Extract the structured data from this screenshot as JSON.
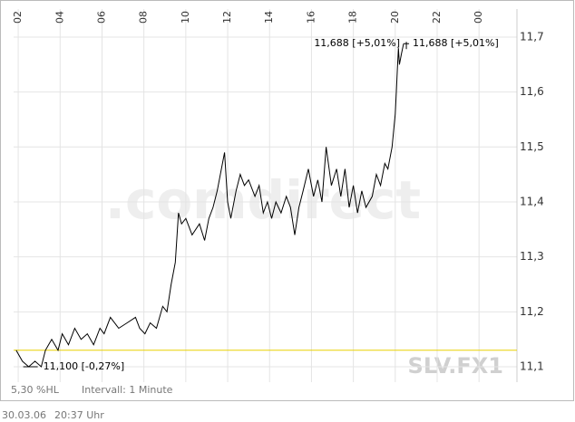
{
  "chart_data": {
    "type": "line",
    "watermark": ".comdirect",
    "symbol": "SLV.FX1",
    "info": [
      "5,30 %HL",
      "Intervall: 1 Minute"
    ],
    "footer": [
      "30.03.06",
      "20:37 Uhr"
    ],
    "annotations": [
      "11,688 [+5,01%]",
      "11,688 [+5,01%]",
      "11,100 [-0,27%]"
    ],
    "reference": {
      "value": 11.13,
      "color": "#e8d000"
    },
    "grid": true,
    "xlim": [
      1.78,
      25.81
    ],
    "xticks": [
      {
        "value": 2,
        "label": "02"
      },
      {
        "value": 4,
        "label": "04"
      },
      {
        "value": 6,
        "label": "06"
      },
      {
        "value": 8,
        "label": "08"
      },
      10,
      12,
      14,
      16,
      18,
      20,
      22,
      {
        "value": 24,
        "label": "00"
      }
    ],
    "ylim": [
      11.072,
      11.751
    ],
    "yticks": [
      {
        "value": 11.1,
        "label": "11,1"
      },
      {
        "value": 11.2,
        "label": "11,2"
      },
      {
        "value": 11.3,
        "label": "11,3"
      },
      {
        "value": 11.4,
        "label": "11,4"
      },
      {
        "value": 11.5,
        "label": "11,5"
      },
      {
        "value": 11.6,
        "label": "11,6"
      },
      {
        "value": 11.7,
        "label": "11,7"
      }
    ],
    "x": [
      1.9,
      2.2,
      2.5,
      2.8,
      3.1,
      3.3,
      3.6,
      3.9,
      4.1,
      4.4,
      4.7,
      5.0,
      5.3,
      5.6,
      5.9,
      6.1,
      6.4,
      6.8,
      7.2,
      7.6,
      7.8,
      8.05,
      8.3,
      8.6,
      8.9,
      9.1,
      9.3,
      9.5,
      9.65,
      9.8,
      10.0,
      10.3,
      10.65,
      10.9,
      11.1,
      11.3,
      11.5,
      11.7,
      11.85,
      12.0,
      12.15,
      12.4,
      12.6,
      12.8,
      13.0,
      13.3,
      13.5,
      13.7,
      13.9,
      14.1,
      14.3,
      14.55,
      14.8,
      15.0,
      15.2,
      15.4,
      15.6,
      15.85,
      16.1,
      16.3,
      16.5,
      16.7,
      16.95,
      17.2,
      17.4,
      17.6,
      17.8,
      18.0,
      18.2,
      18.4,
      18.6,
      18.9,
      19.1,
      19.3,
      19.5,
      19.65,
      19.85,
      20.0,
      20.05,
      20.1,
      20.15,
      20.2,
      20.3,
      20.4
    ],
    "series": [
      {
        "color": "#000000",
        "values": [
          11.13,
          11.11,
          11.1,
          11.11,
          11.1,
          11.13,
          11.15,
          11.13,
          11.16,
          11.14,
          11.17,
          11.15,
          11.16,
          11.14,
          11.17,
          11.16,
          11.19,
          11.17,
          11.18,
          11.19,
          11.17,
          11.16,
          11.18,
          11.17,
          11.21,
          11.2,
          11.25,
          11.29,
          11.38,
          11.36,
          11.37,
          11.34,
          11.36,
          11.33,
          11.37,
          11.39,
          11.42,
          11.46,
          11.49,
          11.4,
          11.37,
          11.42,
          11.45,
          11.43,
          11.44,
          11.41,
          11.43,
          11.38,
          11.4,
          11.37,
          11.4,
          11.38,
          11.41,
          11.39,
          11.34,
          11.39,
          11.42,
          11.46,
          11.41,
          11.44,
          11.4,
          11.5,
          11.43,
          11.46,
          11.41,
          11.46,
          11.39,
          11.43,
          11.38,
          11.42,
          11.39,
          11.41,
          11.45,
          11.43,
          11.47,
          11.46,
          11.5,
          11.56,
          11.6,
          11.64,
          11.68,
          11.65,
          11.67,
          11.688
        ]
      }
    ]
  }
}
